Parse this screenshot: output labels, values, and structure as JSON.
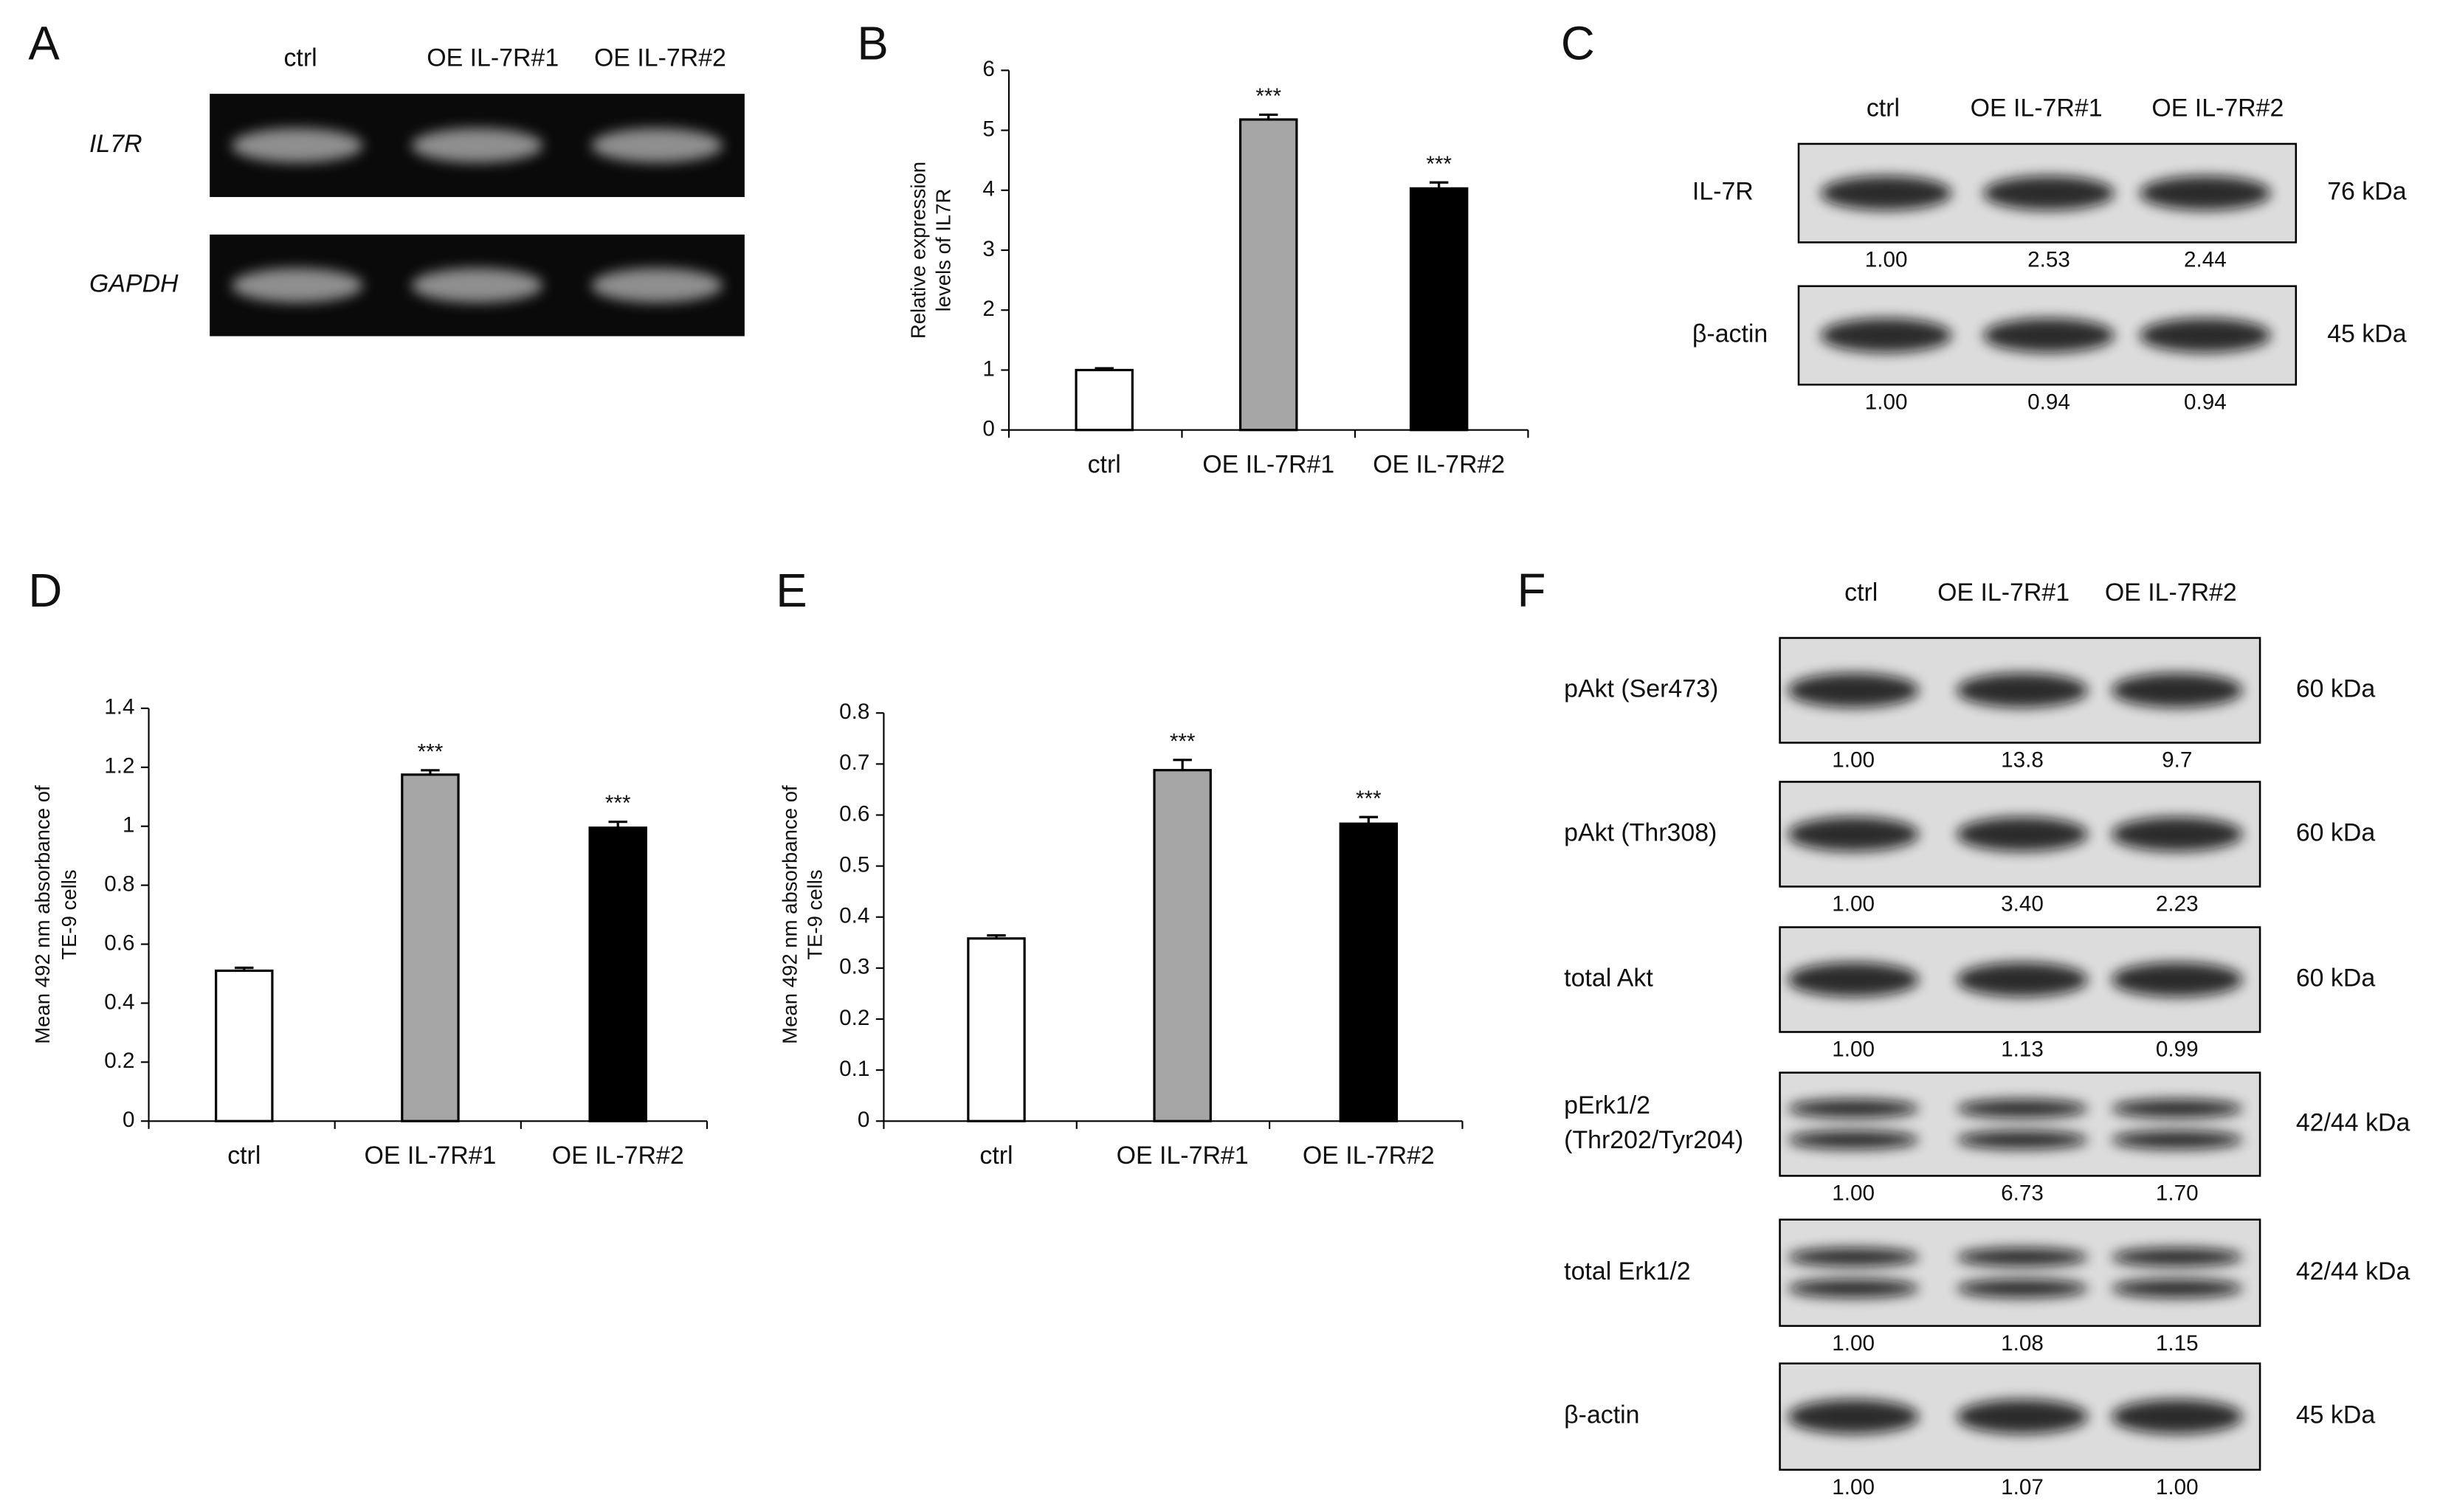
{
  "chart_data": [
    {
      "type": "bar",
      "label": "B",
      "y_label": [
        "Relative expression",
        "levels of IL7R"
      ],
      "categories": [
        "ctrl",
        "OE IL-7R#1",
        "OE IL-7R#2"
      ],
      "values": [
        1.0,
        5.18,
        4.03
      ],
      "errors": [
        0.03,
        0.08,
        0.1
      ],
      "colors": [
        "#ffffff",
        "#a6a6a6",
        "#000000"
      ],
      "significance": [
        null,
        "***",
        "***"
      ],
      "ylim": [
        0,
        6
      ],
      "yticks": [
        0,
        1,
        2,
        3,
        4,
        5,
        6
      ]
    },
    {
      "type": "bar",
      "label": "D",
      "y_label": [
        "Mean 492 nm absorbance of",
        "TE-9 cells"
      ],
      "categories": [
        "ctrl",
        "OE IL-7R#1",
        "OE IL-7R#2"
      ],
      "values": [
        0.51,
        1.175,
        0.995
      ],
      "errors": [
        0.01,
        0.015,
        0.02
      ],
      "colors": [
        "#ffffff",
        "#a6a6a6",
        "#000000"
      ],
      "significance": [
        null,
        "***",
        "***"
      ],
      "ylim": [
        0,
        1.4
      ],
      "yticks": [
        0,
        0.2,
        0.4,
        0.6,
        0.8,
        1,
        1.2,
        1.4
      ]
    },
    {
      "type": "bar",
      "label": "E",
      "y_label": [
        "Mean 492 nm absorbance of",
        "TE-9 cells"
      ],
      "categories": [
        "ctrl",
        "OE IL-7R#1",
        "OE IL-7R#2"
      ],
      "values": [
        0.358,
        0.688,
        0.583
      ],
      "errors": [
        0.006,
        0.02,
        0.013
      ],
      "colors": [
        "#ffffff",
        "#a6a6a6",
        "#000000"
      ],
      "significance": [
        null,
        "***",
        "***"
      ],
      "ylim": [
        0,
        0.8
      ],
      "yticks": [
        0,
        0.1,
        0.2,
        0.3,
        0.4,
        0.5,
        0.6,
        0.7,
        0.8
      ]
    }
  ],
  "blots": [
    {
      "label": "A",
      "columns": [
        "ctrl",
        "OE IL-7R#1",
        "OE IL-7R#2"
      ],
      "rows": [
        {
          "label": "IL7R"
        },
        {
          "label": "GAPDH"
        }
      ]
    },
    {
      "label": "C",
      "columns": [
        "ctrl",
        "OE IL-7R#1",
        "OE IL-7R#2"
      ],
      "rows": [
        {
          "label": "IL-7R",
          "size": "76 kDa",
          "quant": [
            "1.00",
            "2.53",
            "2.44"
          ]
        },
        {
          "label": "β-actin",
          "size": "45 kDa",
          "quant": [
            "1.00",
            "0.94",
            "0.94"
          ]
        }
      ]
    },
    {
      "label": "F",
      "columns": [
        "ctrl",
        "OE IL-7R#1",
        "OE IL-7R#2"
      ],
      "rows": [
        {
          "label": "pAkt (Ser473)",
          "size": "60 kDa",
          "quant": [
            "1.00",
            "13.8",
            "9.7"
          ]
        },
        {
          "label": "pAkt (Thr308)",
          "size": "60 kDa",
          "quant": [
            "1.00",
            "3.40",
            "2.23"
          ]
        },
        {
          "label": "total Akt",
          "size": "60 kDa",
          "quant": [
            "1.00",
            "1.13",
            "0.99"
          ]
        },
        {
          "label": [
            "pErk1/2",
            "(Thr202/Tyr204)"
          ],
          "size": "42/44 kDa",
          "quant": [
            "1.00",
            "6.73",
            "1.70"
          ]
        },
        {
          "label": "total Erk1/2",
          "size": "42/44 kDa",
          "quant": [
            "1.00",
            "1.08",
            "1.15"
          ]
        },
        {
          "label": "β-actin",
          "size": "45 kDa",
          "quant": [
            "1.00",
            "1.07",
            "1.00"
          ]
        }
      ]
    }
  ]
}
